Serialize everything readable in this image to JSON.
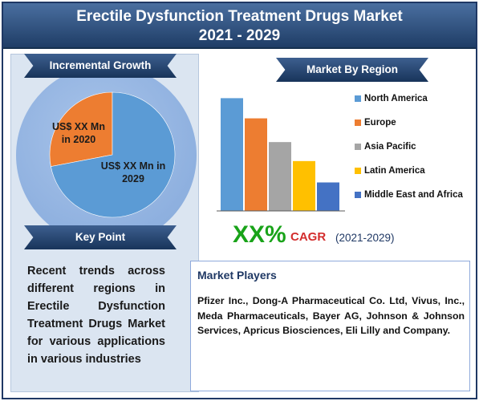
{
  "header": {
    "title_line1": "Erectile Dysfunction Treatment Drugs Market",
    "title_line2": "2021 - 2029"
  },
  "incremental_growth": {
    "heading": "Incremental Growth",
    "label_2020": "US$ XX Mn in 2020",
    "label_2029": "US$ XX Mn in 2029",
    "colors": {
      "segment_2020": "#ed7d31",
      "segment_2029": "#5b9bd5"
    }
  },
  "key_point": {
    "heading": "Key Point",
    "text": "Recent trends across different regions in Erectile Dysfunction Treatment Drugs Market for various applications in various industries"
  },
  "market_by_region": {
    "heading": "Market By Region"
  },
  "cagr": {
    "value": "XX%",
    "label": "CAGR",
    "years": "(2021-2029)"
  },
  "market_players": {
    "heading": "Market Players",
    "text": "Pfizer Inc., Dong-A Pharmaceutical Co. Ltd, Vivus, Inc., Meda Pharmaceuticals, Bayer AG, Johnson & Johnson Services, Apricus Biosciences, Eli Lilly and Company."
  },
  "chart_data": [
    {
      "type": "pie",
      "title": "",
      "slices": [
        {
          "label": "US$ XX Mn in 2020",
          "value": 28,
          "color": "#ed7d31"
        },
        {
          "label": "US$ XX Mn in 2029",
          "value": 72,
          "color": "#5b9bd5"
        }
      ]
    },
    {
      "type": "bar",
      "title": "",
      "xlabel": "",
      "ylabel": "",
      "ylim": [
        0,
        100
      ],
      "grid": false,
      "legend_placement": "right",
      "categories": [
        "North America",
        "Europe",
        "Asia Pacific",
        "Latin America",
        "Middle East and Africa"
      ],
      "values": [
        95,
        78,
        58,
        42,
        24
      ],
      "colors": [
        "#5b9bd5",
        "#ed7d31",
        "#a5a5a5",
        "#ffc000",
        "#4472c4"
      ]
    }
  ]
}
